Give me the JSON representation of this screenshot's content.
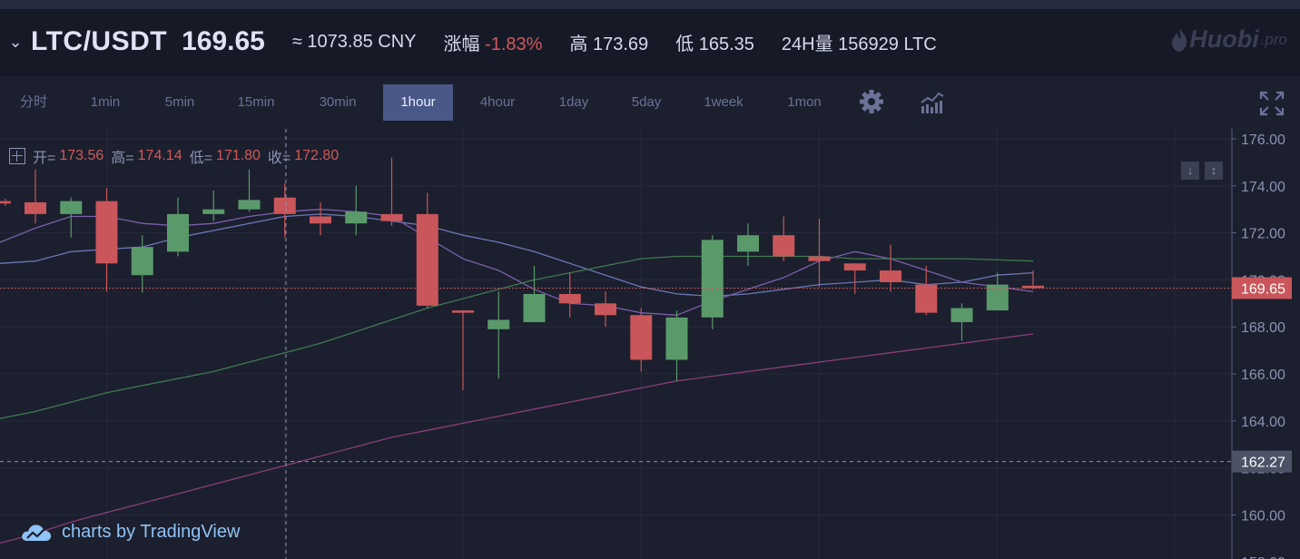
{
  "header": {
    "pair": "LTC/USDT",
    "last_price": "169.65",
    "cny": "≈ 1073.85 CNY",
    "change_label": "涨幅",
    "change_value": "-1.83%",
    "high_label": "高",
    "high_value": "173.69",
    "low_label": "低",
    "low_value": "165.35",
    "volume_label": "24H量",
    "volume_value": "156929 LTC",
    "logo": "Huobi",
    "logo_suffix": ".pro"
  },
  "toolbar": {
    "intervals": [
      "分时",
      "1min",
      "5min",
      "15min",
      "30min",
      "1hour",
      "4hour",
      "1day",
      "5day",
      "1week",
      "1mon"
    ],
    "active": "1hour",
    "settings_icon": "gear-icon",
    "indicators_icon": "indicators-icon",
    "fullscreen_icon": "fullscreen-icon"
  },
  "legend": {
    "open_label": "开=",
    "open": "173.56",
    "high_label": "高=",
    "high": "174.14",
    "low_label": "低=",
    "low": "171.80",
    "close_label": "收=",
    "close": "172.80"
  },
  "branding": "charts by TradingView",
  "colors": {
    "up": "#5a9a6a",
    "down": "#c9565a",
    "background": "#1c1f2e",
    "ma_blue": "#6a78b4",
    "ma_purple": "#7a60aa",
    "ma_green": "#3f7a52",
    "ma_magenta": "#8a3e78"
  },
  "chart_data": {
    "type": "candlestick",
    "y_ticks": [
      176,
      174,
      172,
      170,
      168,
      166,
      164,
      162,
      160,
      158
    ],
    "last_price_label": "169.65",
    "crosshair_price_label": "162.27",
    "candles": [
      {
        "o": 173.35,
        "h": 173.45,
        "l": 173.15,
        "c": 173.25
      },
      {
        "o": 173.3,
        "h": 174.7,
        "l": 172.4,
        "c": 172.8
      },
      {
        "o": 172.8,
        "h": 173.5,
        "l": 171.8,
        "c": 173.35
      },
      {
        "o": 173.35,
        "h": 173.9,
        "l": 169.5,
        "c": 170.7
      },
      {
        "o": 170.2,
        "h": 171.9,
        "l": 169.45,
        "c": 171.4
      },
      {
        "o": 171.2,
        "h": 173.5,
        "l": 171.0,
        "c": 172.8
      },
      {
        "o": 172.8,
        "h": 173.8,
        "l": 172.5,
        "c": 173.0
      },
      {
        "o": 173.0,
        "h": 174.7,
        "l": 172.9,
        "c": 173.4
      },
      {
        "o": 173.5,
        "h": 174.1,
        "l": 171.8,
        "c": 172.8
      },
      {
        "o": 172.7,
        "h": 173.3,
        "l": 171.9,
        "c": 172.4
      },
      {
        "o": 172.4,
        "h": 174.0,
        "l": 171.9,
        "c": 172.9
      },
      {
        "o": 172.8,
        "h": 175.2,
        "l": 172.3,
        "c": 172.5
      },
      {
        "o": 172.8,
        "h": 173.7,
        "l": 168.8,
        "c": 168.9
      },
      {
        "o": 168.7,
        "h": 168.7,
        "l": 165.3,
        "c": 168.6
      },
      {
        "o": 167.9,
        "h": 169.5,
        "l": 165.8,
        "c": 168.3
      },
      {
        "o": 168.2,
        "h": 170.6,
        "l": 168.2,
        "c": 169.4
      },
      {
        "o": 169.4,
        "h": 170.3,
        "l": 168.4,
        "c": 169.0
      },
      {
        "o": 169.0,
        "h": 169.5,
        "l": 168.0,
        "c": 168.5
      },
      {
        "o": 168.5,
        "h": 168.8,
        "l": 166.1,
        "c": 166.6
      },
      {
        "o": 166.6,
        "h": 168.7,
        "l": 165.7,
        "c": 168.4
      },
      {
        "o": 168.4,
        "h": 171.9,
        "l": 167.9,
        "c": 171.7
      },
      {
        "o": 171.2,
        "h": 172.4,
        "l": 170.6,
        "c": 171.9
      },
      {
        "o": 171.9,
        "h": 172.7,
        "l": 170.8,
        "c": 171.0
      },
      {
        "o": 171.0,
        "h": 172.6,
        "l": 169.7,
        "c": 170.8
      },
      {
        "o": 170.7,
        "h": 170.7,
        "l": 169.4,
        "c": 170.4
      },
      {
        "o": 170.4,
        "h": 171.5,
        "l": 169.5,
        "c": 169.9
      },
      {
        "o": 169.8,
        "h": 170.6,
        "l": 168.5,
        "c": 168.6
      },
      {
        "o": 168.2,
        "h": 169.0,
        "l": 167.4,
        "c": 168.8
      },
      {
        "o": 168.7,
        "h": 170.3,
        "l": 168.7,
        "c": 169.8
      },
      {
        "o": 169.75,
        "h": 170.4,
        "l": 169.6,
        "c": 169.65
      }
    ],
    "ma_lines": [
      {
        "name": "ma-blue",
        "color": "#6a78b4",
        "values": [
          170.7,
          170.8,
          171.2,
          171.3,
          171.4,
          171.8,
          172.1,
          172.4,
          172.7,
          172.8,
          172.7,
          172.5,
          172.3,
          171.9,
          171.6,
          171.2,
          170.7,
          170.2,
          169.7,
          169.4,
          169.3,
          169.4,
          169.6,
          169.8,
          169.9,
          170.0,
          169.8,
          169.9,
          170.2,
          170.3
        ]
      },
      {
        "name": "ma-purple",
        "color": "#7a60aa",
        "values": [
          171.6,
          172.2,
          172.7,
          172.7,
          172.4,
          172.3,
          172.4,
          172.7,
          172.9,
          173.0,
          172.9,
          172.7,
          171.8,
          170.9,
          170.4,
          169.6,
          169.0,
          168.9,
          168.6,
          168.5,
          169.1,
          169.6,
          170.1,
          170.8,
          171.2,
          170.9,
          170.4,
          169.9,
          169.7,
          169.5
        ]
      },
      {
        "name": "ma-green",
        "color": "#3f7a52",
        "values": [
          164.1,
          164.4,
          164.8,
          165.2,
          165.5,
          165.8,
          166.1,
          166.5,
          166.9,
          167.3,
          167.8,
          168.3,
          168.8,
          169.2,
          169.6,
          170.0,
          170.3,
          170.6,
          170.9,
          171.0,
          171.0,
          171.0,
          171.0,
          171.0,
          170.9,
          170.9,
          170.9,
          170.9,
          170.85,
          170.8
        ]
      },
      {
        "name": "ma-magenta",
        "color": "#8a3e78",
        "values": [
          158.8,
          159.2,
          159.7,
          160.1,
          160.5,
          160.9,
          161.3,
          161.7,
          162.1,
          162.5,
          162.9,
          163.3,
          163.6,
          163.9,
          164.2,
          164.5,
          164.8,
          165.1,
          165.4,
          165.7,
          165.9,
          166.1,
          166.3,
          166.5,
          166.7,
          166.9,
          167.1,
          167.3,
          167.5,
          167.7
        ]
      }
    ]
  }
}
